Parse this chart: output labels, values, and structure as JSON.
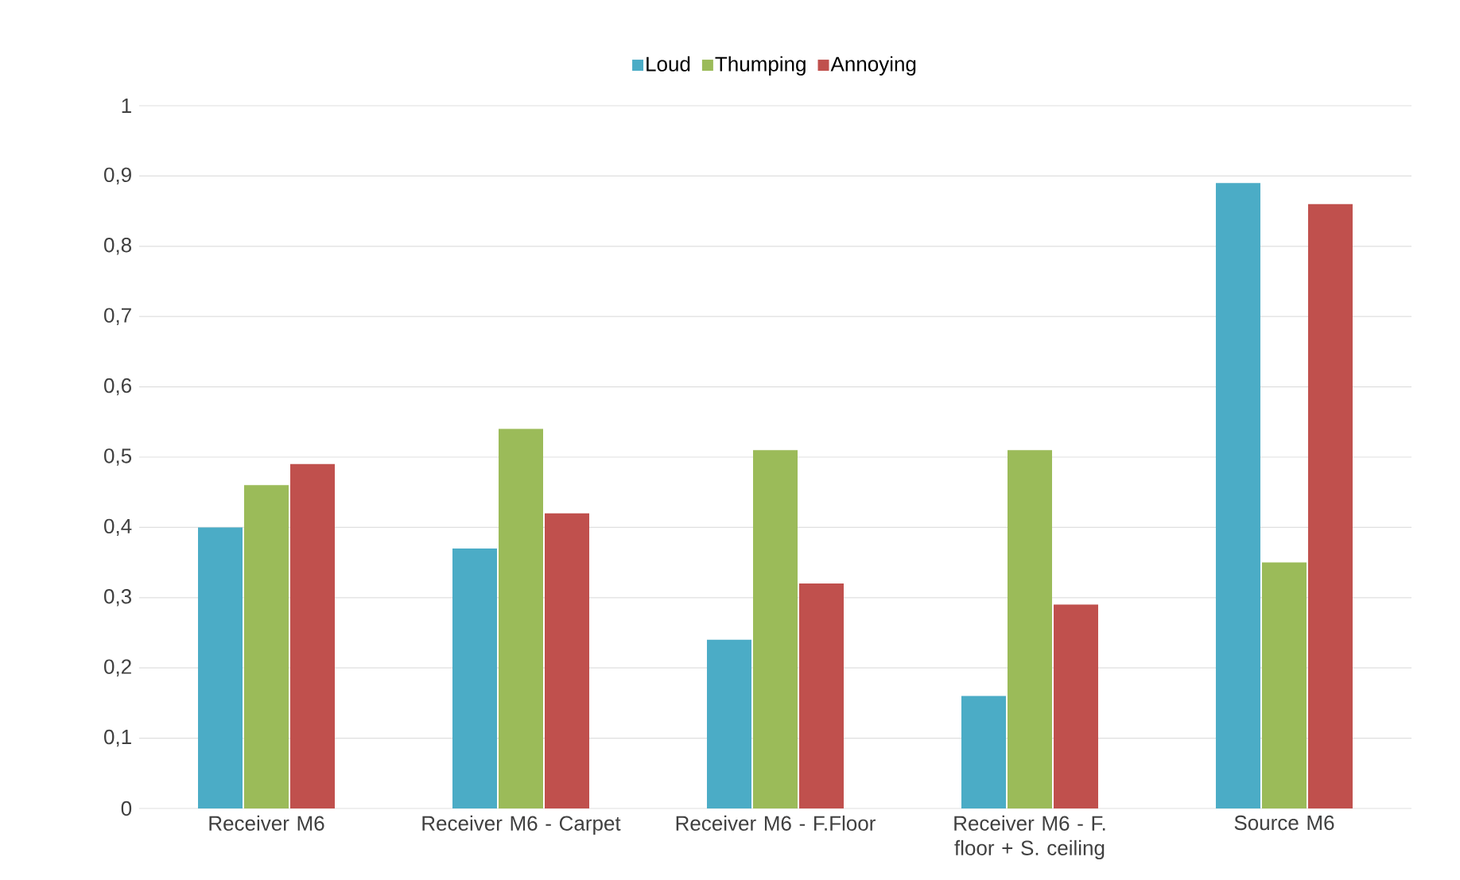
{
  "chart_data": {
    "type": "bar",
    "categories": [
      "Receiver M6",
      "Receiver M6 - Carpet",
      "Receiver M6 - F.Floor",
      "Receiver M6 - F. floor + S. ceiling",
      "Source M6"
    ],
    "series": [
      {
        "name": "Loud",
        "color": "#4bacc6",
        "values": [
          0.4,
          0.37,
          0.24,
          0.16,
          0.89
        ]
      },
      {
        "name": "Thumping",
        "color": "#9bbb59",
        "values": [
          0.46,
          0.54,
          0.51,
          0.51,
          0.35
        ]
      },
      {
        "name": "Annoying",
        "color": "#c0504d",
        "values": [
          0.49,
          0.42,
          0.32,
          0.29,
          0.86
        ]
      }
    ],
    "ylim": [
      0,
      1
    ],
    "yticks": [
      {
        "value": 0,
        "label": "0"
      },
      {
        "value": 0.1,
        "label": "0,1"
      },
      {
        "value": 0.2,
        "label": "0,2"
      },
      {
        "value": 0.3,
        "label": "0,3"
      },
      {
        "value": 0.4,
        "label": "0,4"
      },
      {
        "value": 0.5,
        "label": "0,5"
      },
      {
        "value": 0.6,
        "label": "0,6"
      },
      {
        "value": 0.7,
        "label": "0,7"
      },
      {
        "value": 0.8,
        "label": "0,8"
      },
      {
        "value": 0.9,
        "label": "0,9"
      },
      {
        "value": 1,
        "label": "1"
      }
    ],
    "grid": "y",
    "legend": "top"
  }
}
